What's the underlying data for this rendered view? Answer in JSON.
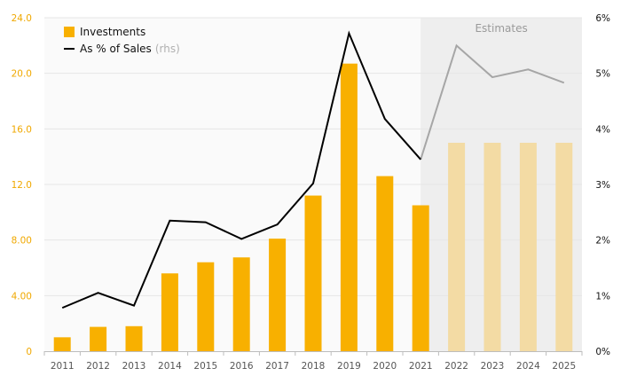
{
  "chart_data": {
    "type": "bar",
    "categories": [
      "2011",
      "2012",
      "2013",
      "2014",
      "2015",
      "2016",
      "2017",
      "2018",
      "2019",
      "2020",
      "2021",
      "2022",
      "2023",
      "2024",
      "2025"
    ],
    "series": [
      {
        "name": "Investments",
        "type": "bar",
        "axis": "left",
        "color": "#f8b000",
        "estimate_color": "#f3dba4",
        "values": [
          1.0,
          1.75,
          1.8,
          5.6,
          6.4,
          6.75,
          8.1,
          11.2,
          20.7,
          12.6,
          10.5,
          15.0,
          15.0,
          15.0,
          15.0
        ]
      },
      {
        "name": "As % of Sales",
        "name_suffix": "(rhs)",
        "type": "line",
        "axis": "right",
        "color": "#000000",
        "estimate_color": "#a6a6a6",
        "values": [
          0.78,
          1.05,
          0.82,
          2.35,
          2.32,
          2.02,
          2.28,
          3.02,
          5.72,
          4.18,
          3.45,
          5.5,
          4.93,
          5.07,
          4.83
        ]
      }
    ],
    "estimates": {
      "label": "Estimates",
      "from_category": "2021",
      "to_category": "2025",
      "shade_color": "#eeeeee",
      "bars_from_category": "2022"
    },
    "y_left": {
      "ylim": [
        0,
        24
      ],
      "ticks": [
        "0",
        "4.00",
        "8.00",
        "12.0",
        "16.0",
        "20.0",
        "24.0"
      ],
      "tick_values": [
        0,
        4,
        8,
        12,
        16,
        20,
        24
      ],
      "color": "#f0a800"
    },
    "y_right": {
      "ylim": [
        0,
        6
      ],
      "ticks": [
        "0%",
        "1%",
        "2%",
        "3%",
        "4%",
        "5%",
        "6%"
      ],
      "tick_values": [
        0,
        1,
        2,
        3,
        4,
        5,
        6
      ],
      "color": "#111111"
    },
    "legend": {
      "placement": "top-left"
    },
    "grid": true,
    "plot_background": "#fafafa"
  }
}
